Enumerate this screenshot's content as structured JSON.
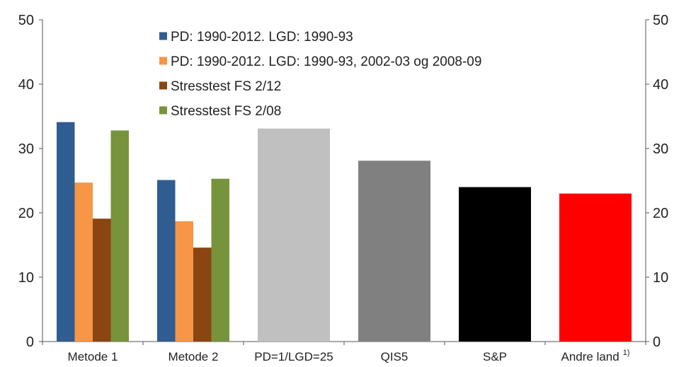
{
  "chart_data": {
    "type": "bar",
    "categories": [
      "Metode 1",
      "Metode 2",
      "PD=1/LGD=25",
      "QIS5",
      "S&P",
      "Andre land"
    ],
    "category_footnote": {
      "index": 5,
      "text": "1)"
    },
    "series": [
      {
        "name": "PD: 1990-2012. LGD: 1990-93",
        "color": "#2f5d91",
        "values": [
          34.1,
          25.1,
          null,
          null,
          null,
          null
        ]
      },
      {
        "name": "PD: 1990-2012. LGD: 1990-93, 2002-03 og 2008-09",
        "color": "#f79646",
        "values": [
          24.7,
          18.7,
          null,
          null,
          null,
          null
        ]
      },
      {
        "name": "Stresstest FS 2/12",
        "color": "#8b4513",
        "values": [
          19.1,
          14.6,
          null,
          null,
          null,
          null
        ]
      },
      {
        "name": "Stresstest FS 2/08",
        "color": "#77933c",
        "values": [
          32.8,
          25.3,
          null,
          null,
          null,
          null
        ]
      }
    ],
    "single_bars": [
      {
        "category_index": 2,
        "value": 33.1,
        "color": "#c0c0c0"
      },
      {
        "category_index": 3,
        "value": 28.1,
        "color": "#808080"
      },
      {
        "category_index": 4,
        "value": 24.0,
        "color": "#000000"
      },
      {
        "category_index": 5,
        "value": 23.0,
        "color": "#ff0000"
      }
    ],
    "ylim": [
      0,
      50
    ],
    "yticks": [
      0,
      10,
      20,
      30,
      40,
      50
    ],
    "right_axis": true,
    "grid": false,
    "legend_position": "top-left",
    "title": "",
    "xlabel": "",
    "ylabel": ""
  }
}
